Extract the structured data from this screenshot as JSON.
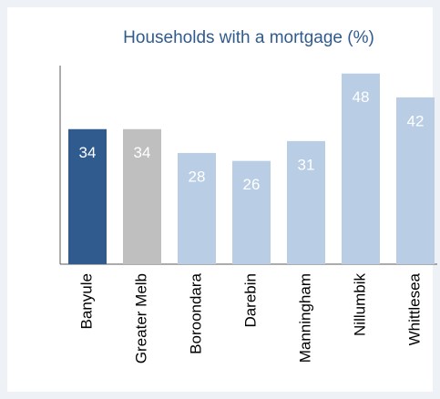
{
  "chart_data": {
    "type": "bar",
    "title": "Households with a mortgage (%)",
    "categories": [
      "Banyule",
      "Greater Melb",
      "Boroondara",
      "Darebin",
      "Manningham",
      "Nillumbik",
      "Whittlesea"
    ],
    "values": [
      34,
      34,
      28,
      26,
      31,
      48,
      42
    ],
    "colors": [
      "#2f5b8e",
      "#bfbfbf",
      "#b9cde5",
      "#b9cde5",
      "#b9cde5",
      "#b9cde5",
      "#b9cde5"
    ],
    "ylim": [
      0,
      50
    ]
  }
}
